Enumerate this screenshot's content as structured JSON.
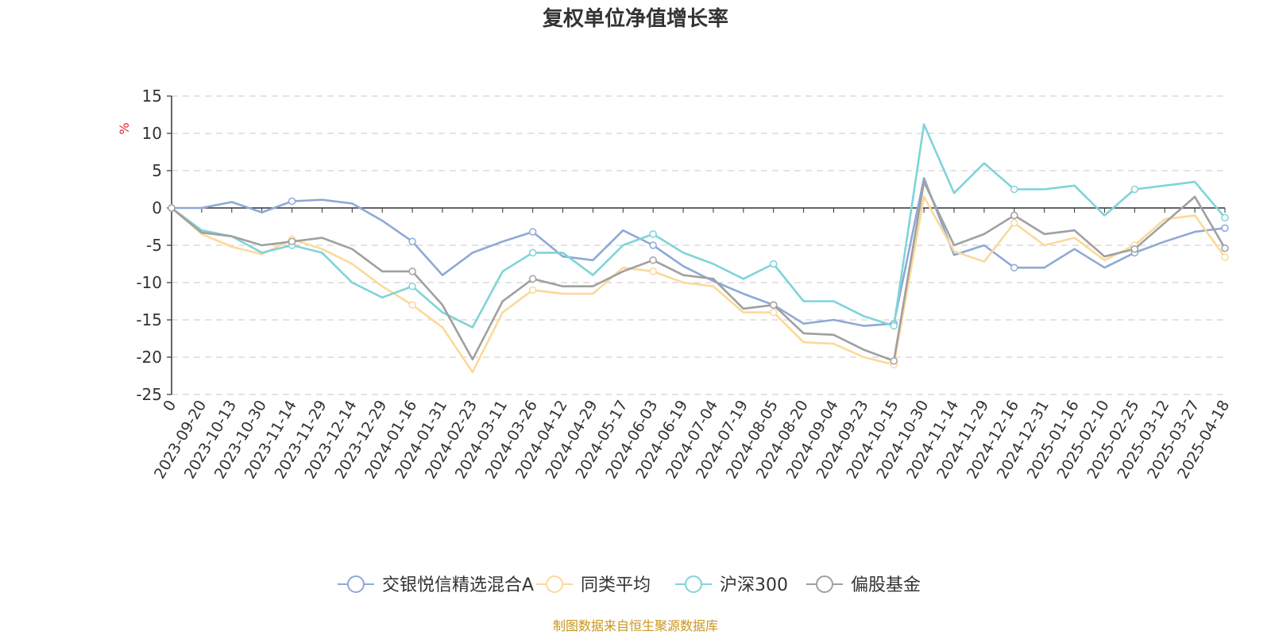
{
  "chart_data": {
    "type": "line",
    "title": "复权单位净值增长率",
    "ylabel": "%",
    "ylim": [
      -25,
      15
    ],
    "yticks": [
      "15",
      "10",
      "5",
      "0",
      "-5",
      "-10",
      "-15",
      "-20",
      "-25"
    ],
    "categories": [
      "0",
      "2023-09-20",
      "2023-10-13",
      "2023-10-30",
      "2023-11-14",
      "2023-11-29",
      "2023-12-14",
      "2023-12-29",
      "2024-01-16",
      "2024-01-31",
      "2024-02-23",
      "2024-03-11",
      "2024-03-26",
      "2024-04-12",
      "2024-04-29",
      "2024-05-17",
      "2024-06-03",
      "2024-06-19",
      "2024-07-04",
      "2024-07-19",
      "2024-08-05",
      "2024-08-20",
      "2024-09-04",
      "2024-09-23",
      "2024-10-15",
      "2024-10-30",
      "2024-11-14",
      "2024-11-29",
      "2024-12-16",
      "2024-12-31",
      "2025-01-16",
      "2025-02-10",
      "2025-02-25",
      "2025-03-12",
      "2025-03-27",
      "2025-04-18"
    ],
    "x": [
      0,
      2,
      4,
      6,
      8,
      10,
      12,
      14,
      16,
      18,
      20,
      22,
      24,
      26,
      28,
      30,
      32,
      34,
      36,
      38,
      40,
      42,
      44,
      46,
      48,
      50,
      52,
      54,
      56,
      58,
      60,
      62,
      64,
      66,
      68,
      70
    ],
    "series": [
      {
        "name": "交银悦信精选混合A",
        "color": "#8ea9d6",
        "values": [
          0,
          0,
          0.8,
          -0.6,
          0.9,
          1.1,
          0.6,
          -1.7,
          -4.5,
          -9.0,
          -6.0,
          -4.5,
          -3.2,
          -6.5,
          -7.0,
          -3.0,
          -5.0,
          -7.8,
          -9.8,
          -11.5,
          -13.0,
          -15.5,
          -15.0,
          -15.8,
          -15.5,
          4.0,
          -6.3,
          -5.0,
          -8.0,
          -8.0,
          -5.5,
          -8.0,
          -6.0,
          -4.5,
          -3.2,
          -2.7
        ]
      },
      {
        "name": "同类平均",
        "color": "#fbd99a",
        "values": [
          0,
          -3.5,
          -5.2,
          -6.2,
          -4.2,
          -5.5,
          -7.5,
          -10.5,
          -13.0,
          -16.0,
          -22.0,
          -14.0,
          -11.0,
          -11.5,
          -11.5,
          -8.0,
          -8.5,
          -10.0,
          -10.5,
          -14.0,
          -14.0,
          -18.0,
          -18.2,
          -20.0,
          -21.0,
          1.5,
          -5.8,
          -7.2,
          -2.0,
          -5.0,
          -4.0,
          -7.0,
          -5.0,
          -1.5,
          -1.0,
          -6.6
        ]
      },
      {
        "name": "沪深300",
        "color": "#7fd4d8",
        "values": [
          0,
          -3.0,
          -3.8,
          -6.0,
          -5.0,
          -6.0,
          -10.0,
          -12.0,
          -10.5,
          -14.0,
          -16.0,
          -8.5,
          -6.0,
          -6.0,
          -9.0,
          -5.0,
          -3.5,
          -6.0,
          -7.5,
          -9.5,
          -7.5,
          -12.5,
          -12.5,
          -14.5,
          -15.8,
          11.2,
          2.0,
          6.0,
          2.5,
          2.5,
          3.0,
          -1.0,
          2.5,
          3.0,
          3.5,
          -1.3
        ]
      },
      {
        "name": "偏股基金",
        "color": "#a0a0a0",
        "values": [
          0,
          -3.3,
          -3.8,
          -5.0,
          -4.5,
          -4.0,
          -5.5,
          -8.5,
          -8.5,
          -13.0,
          -20.3,
          -12.5,
          -9.5,
          -10.5,
          -10.5,
          -8.5,
          -7.0,
          -9.0,
          -9.5,
          -13.5,
          -13.0,
          -16.8,
          -17.0,
          -19.0,
          -20.5,
          3.5,
          -5.0,
          -3.5,
          -1.0,
          -3.5,
          -3.0,
          -6.5,
          -5.5,
          -2.0,
          1.5,
          -5.4
        ]
      }
    ],
    "legend": [
      "交银悦信精选混合A",
      "同类平均",
      "沪深300",
      "偏股基金"
    ],
    "legend_position": "bottom",
    "grid": true,
    "source": "制图数据来自恒生聚源数据库"
  }
}
